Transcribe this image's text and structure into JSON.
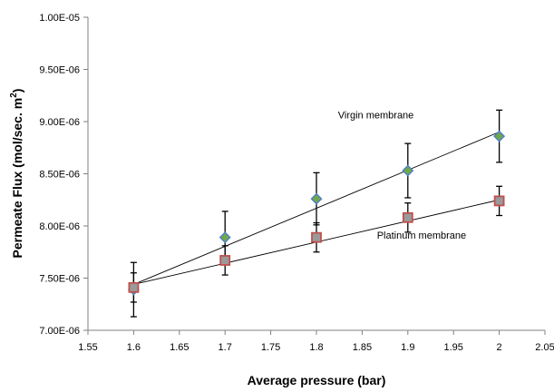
{
  "chart_data": {
    "type": "scatter",
    "title": "",
    "xlabel": "Average pressure (bar)",
    "ylabel_main": "Permeate Flux (mol/sec. m",
    "ylabel_sup": "2",
    "ylabel_close": ")",
    "xlim": [
      1.55,
      2.05
    ],
    "ylim": [
      7e-06,
      1e-05
    ],
    "x_ticks": [
      1.55,
      1.6,
      1.65,
      1.7,
      1.75,
      1.8,
      1.85,
      1.9,
      1.95,
      2,
      2.05
    ],
    "x_tick_labels": [
      "1.55",
      "1.6",
      "1.65",
      "1.7",
      "1.75",
      "1.8",
      "1.85",
      "1.9",
      "1.95",
      "2",
      "2.05"
    ],
    "y_ticks": [
      7e-06,
      7.5e-06,
      8e-06,
      8.5e-06,
      9e-06,
      9.5e-06,
      1e-05
    ],
    "y_tick_labels": [
      "7.00E-06",
      "7.50E-06",
      "8.00E-06",
      "8.50E-06",
      "9.00E-06",
      "9.50E-06",
      "1.00E-05"
    ],
    "grid": false,
    "series": [
      {
        "name": "Virgin membrane",
        "marker": "diamond",
        "fill": "#6fa84a",
        "stroke": "#4f7fc4",
        "x": [
          1.6,
          1.7,
          1.8,
          1.9,
          2.0
        ],
        "y": [
          7.39e-06,
          7.89e-06,
          8.26e-06,
          8.53e-06,
          8.86e-06
        ],
        "err": [
          2.6e-07,
          2.5e-07,
          2.5e-07,
          2.6e-07,
          2.5e-07
        ],
        "trend": {
          "x": [
            1.6,
            2.0
          ],
          "y": [
            7.44e-06,
            8.9e-06
          ]
        }
      },
      {
        "name": "Platinum membrane",
        "marker": "square",
        "fill": "#9a9a9a",
        "stroke": "#c0504d",
        "x": [
          1.6,
          1.7,
          1.8,
          1.9,
          2.0
        ],
        "y": [
          7.41e-06,
          7.67e-06,
          7.89e-06,
          8.08e-06,
          8.24e-06
        ],
        "err": [
          1.4e-07,
          1.4e-07,
          1.4e-07,
          1.4e-07,
          1.4e-07
        ],
        "trend": {
          "x": [
            1.6,
            2.0
          ],
          "y": [
            7.44e-06,
            8.25e-06
          ]
        }
      }
    ],
    "annotations": [
      {
        "text": "Virgin membrane",
        "x": 1.865,
        "y": 9.03e-06
      },
      {
        "text": "Platinum membrane",
        "x": 1.915,
        "y": 7.88e-06
      }
    ]
  }
}
